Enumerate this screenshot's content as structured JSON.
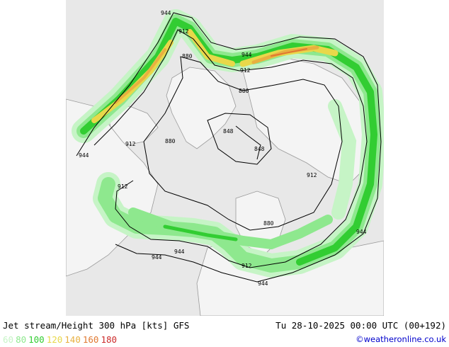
{
  "map": {
    "title": "Jet stream/Height 300 hPa [kts] GFS",
    "valid_time": "Tu 28-10-2025 00:00 UTC (00+192)",
    "legend": [
      {
        "label": "60",
        "color": "#c6f4c6"
      },
      {
        "label": "80",
        "color": "#8ee88e"
      },
      {
        "label": "100",
        "color": "#32cd32"
      },
      {
        "label": "120",
        "color": "#e8d84a"
      },
      {
        "label": "140",
        "color": "#e8b040"
      },
      {
        "label": "160",
        "color": "#e07830"
      },
      {
        "label": "180",
        "color": "#cc2a2a"
      }
    ],
    "credit": "©weatheronline.co.uk",
    "contour_labels": [
      {
        "id": "944-top",
        "text": "944"
      },
      {
        "id": "912-top",
        "text": "912"
      },
      {
        "id": "880-top",
        "text": "880"
      },
      {
        "id": "944-ne",
        "text": "944"
      },
      {
        "id": "912-ne",
        "text": "912"
      },
      {
        "id": "880-ne",
        "text": "880"
      },
      {
        "id": "848-mid",
        "text": "848"
      },
      {
        "id": "848-right",
        "text": "848"
      },
      {
        "id": "880-left",
        "text": "880"
      },
      {
        "id": "912-left",
        "text": "912"
      },
      {
        "id": "944-left",
        "text": "944"
      },
      {
        "id": "912-right",
        "text": "912"
      },
      {
        "id": "912-lower-left",
        "text": "912"
      },
      {
        "id": "880-lower",
        "text": "880"
      },
      {
        "id": "944-far-right",
        "text": "944"
      },
      {
        "id": "944-bottom-left",
        "text": "944"
      },
      {
        "id": "944-bottom-left2",
        "text": "944"
      },
      {
        "id": "912-bottom",
        "text": "912"
      },
      {
        "id": "944-bottom",
        "text": "944"
      }
    ]
  }
}
